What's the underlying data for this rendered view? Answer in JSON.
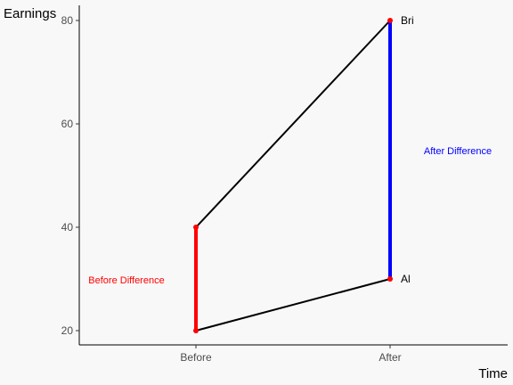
{
  "chart_data": {
    "type": "line",
    "title": "",
    "xlabel": "Time",
    "ylabel": "Earnings",
    "categories": [
      "Before",
      "After"
    ],
    "ylim": [
      17,
      84
    ],
    "yticks": [
      20,
      40,
      60,
      80
    ],
    "grid": false,
    "series": [
      {
        "name": "Al",
        "values": [
          20,
          30
        ]
      },
      {
        "name": "Bri",
        "values": [
          40,
          80
        ]
      }
    ],
    "segments": [
      {
        "label": "Before Difference",
        "category": "Before",
        "from": 20,
        "to": 40,
        "color": "#ff0000"
      },
      {
        "label": "After Difference",
        "category": "After",
        "from": 30,
        "to": 80,
        "color": "#0000ff"
      }
    ],
    "point_color": "#ff0000",
    "line_color": "#000000"
  }
}
